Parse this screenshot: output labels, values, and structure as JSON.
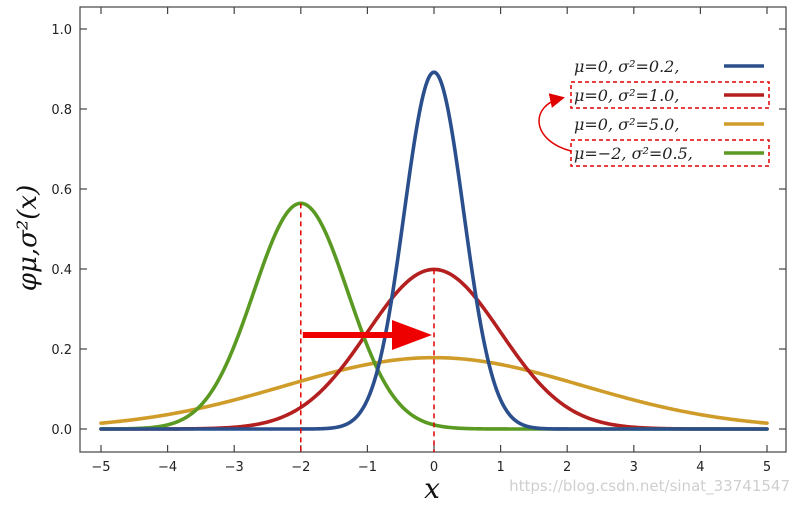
{
  "chart_data": {
    "type": "line",
    "title": "",
    "xlabel": "x",
    "ylabel": "φμ,σ²(x)",
    "xlim": [
      -5,
      5
    ],
    "ylim": [
      0,
      1.0
    ],
    "x_ticks": [
      -5,
      -4,
      -3,
      -2,
      -1,
      0,
      1,
      2,
      3,
      4,
      5
    ],
    "x_tick_labels": [
      "−5",
      "−4",
      "−3",
      "−2",
      "−1",
      "0",
      "1",
      "2",
      "3",
      "4",
      "5"
    ],
    "y_ticks": [
      0,
      0.2,
      0.4,
      0.6,
      0.8,
      1.0
    ],
    "y_tick_labels": [
      "0.0",
      "0.2",
      "0.4",
      "0.6",
      "0.8",
      "1.0"
    ],
    "grid": false,
    "legend_placement": "top-right",
    "series": [
      {
        "name": "μ=0,   σ²=0.2,",
        "mu": 0,
        "variance": 0.2,
        "color": "#2a4f8c",
        "peak": 0.89
      },
      {
        "name": "μ=0,   σ²=1.0,",
        "mu": 0,
        "variance": 1.0,
        "color": "#b3201f",
        "peak": 0.4
      },
      {
        "name": "μ=0,   σ²=5.0,",
        "mu": 0,
        "variance": 5.0,
        "color": "#cf9c2a",
        "peak": 0.18
      },
      {
        "name": "μ=−2,   σ²=0.5,",
        "mu": -2,
        "variance": 0.5,
        "color": "#5a9a22",
        "peak": 0.56
      }
    ],
    "annotations": {
      "highlight_boxes_color": "#e00000",
      "highlighted_series": [
        1,
        3
      ],
      "dashed_lines_at_x": [
        -2,
        0
      ],
      "shift_arrow": {
        "from_x": -2,
        "to_x": 0,
        "at_y": 0.235,
        "color": "#ee0000"
      }
    }
  },
  "watermark": "https://blog.csdn.net/sinat_33741547"
}
